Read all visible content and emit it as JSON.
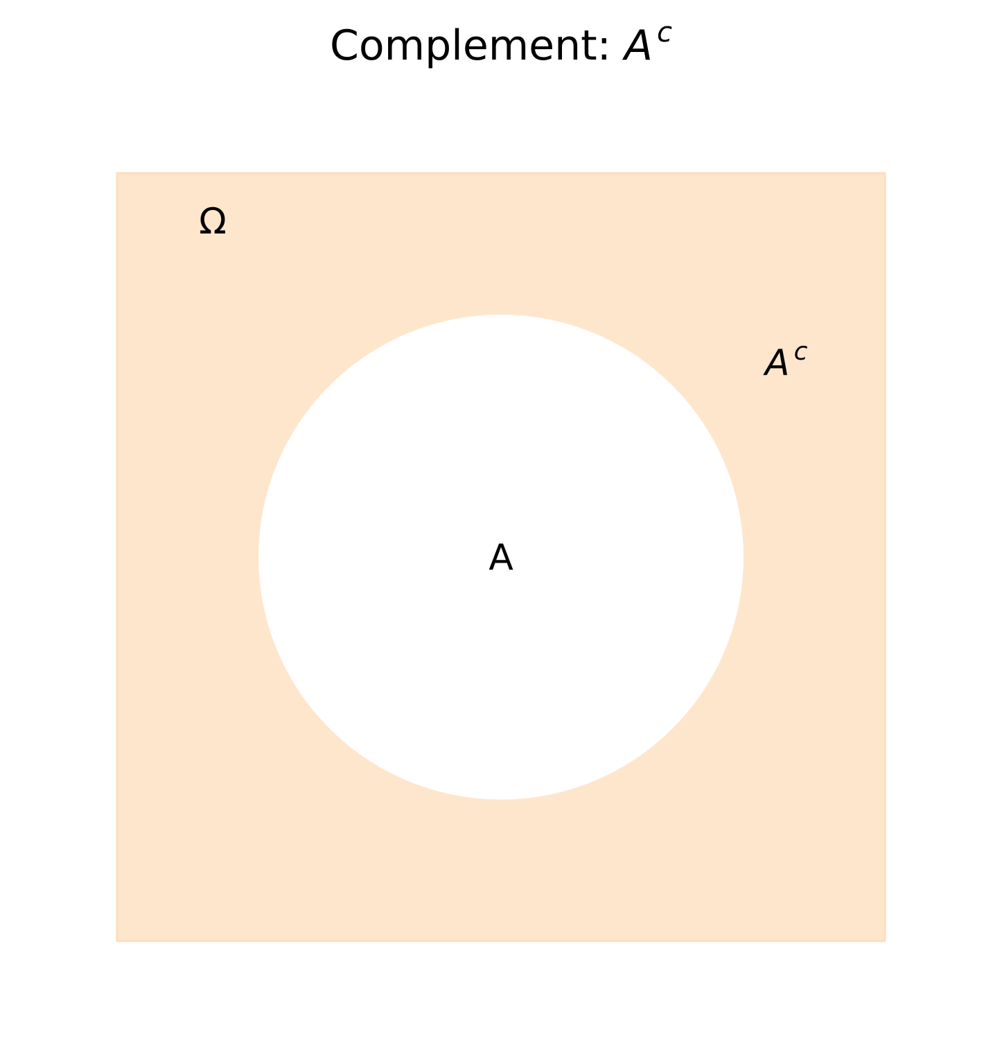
{
  "title": {
    "prefix": "Complement: ",
    "symbol": "A",
    "superscript": "c"
  },
  "universe": {
    "label": "Ω",
    "fill_color": "#fee6cd",
    "edge_color": "#fddcbd"
  },
  "set_a": {
    "label": "A",
    "fill_color": "#ffffff"
  },
  "complement_label": {
    "symbol": "A",
    "superscript": "c"
  }
}
